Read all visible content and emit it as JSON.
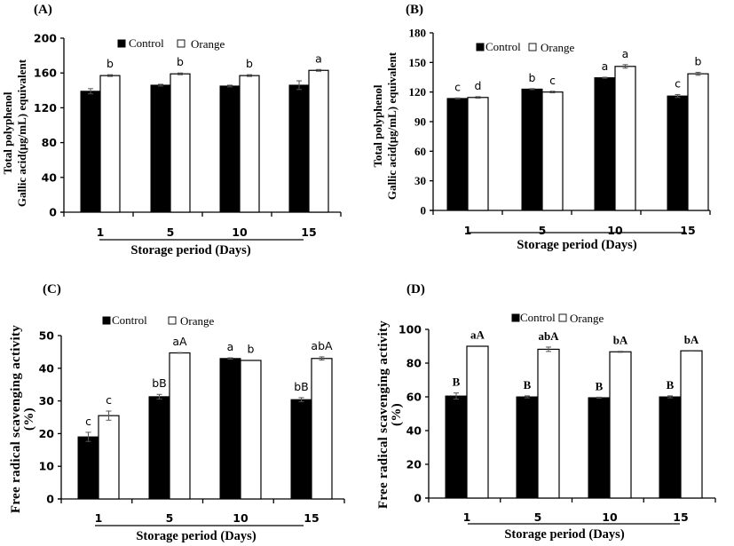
{
  "figure": {
    "legend": {
      "control": "Control",
      "orange": "Orange"
    },
    "colors": {
      "control": "#000000",
      "orange": "#ffffff",
      "axis": "#000000"
    }
  },
  "chart_data": [
    {
      "panel": "(A)",
      "type": "bar",
      "title": "",
      "xlabel": "Storage period (Days)",
      "ylabel": [
        "Total  polyphenol",
        "Gallic  acid(μg/mL)  equivalent"
      ],
      "categories": [
        "1",
        "5",
        "10",
        "15"
      ],
      "ylim": [
        0,
        200
      ],
      "yticks": [
        "0",
        "40",
        "80",
        "120",
        "160",
        "200"
      ],
      "ytick_values": [
        0,
        40,
        80,
        120,
        160,
        200
      ],
      "legend_position": "top-center",
      "grid": false,
      "series": [
        {
          "name": "Control",
          "values": [
            139,
            146,
            145,
            146
          ],
          "errors": [
            3,
            1,
            1,
            5
          ],
          "labels": [
            "",
            "",
            "",
            ""
          ]
        },
        {
          "name": "Orange",
          "values": [
            157,
            159,
            157,
            163
          ],
          "errors": [
            1,
            1,
            1,
            1
          ],
          "labels": [
            "b",
            "b",
            "b",
            "a"
          ]
        }
      ]
    },
    {
      "panel": "(B)",
      "type": "bar",
      "title": "",
      "xlabel": "Storage period (Days)",
      "ylabel": [
        "Total  polyphenol",
        "Gallic  acid(μg/mL)  equivalent"
      ],
      "categories": [
        "1",
        "5",
        "10",
        "15"
      ],
      "ylim": [
        0,
        180
      ],
      "yticks": [
        "0",
        "30",
        "60",
        "90",
        "120",
        "150",
        "180"
      ],
      "ytick_values": [
        0,
        30,
        60,
        90,
        120,
        150,
        180
      ],
      "legend_position": "top-center",
      "grid": false,
      "series": [
        {
          "name": "Control",
          "values": [
            113.5,
            123,
            134.5,
            116
          ],
          "errors": [
            0.5,
            0.5,
            0.5,
            1.5
          ],
          "labels": [
            "c",
            "b",
            "a",
            "c"
          ]
        },
        {
          "name": "Orange",
          "values": [
            114.5,
            120,
            146,
            138.5
          ],
          "errors": [
            0.8,
            0.8,
            1.8,
            1.5
          ],
          "labels": [
            "d",
            "c",
            "a",
            "b"
          ]
        }
      ]
    },
    {
      "panel": "(C)",
      "type": "bar",
      "title": "",
      "xlabel": "Storage period (Days)",
      "ylabel": [
        "Free radical scavenging activity",
        "(%)"
      ],
      "categories": [
        "1",
        "5",
        "10",
        "15"
      ],
      "ylim": [
        0,
        50
      ],
      "yticks": [
        "0",
        "10",
        "20",
        "30",
        "40",
        "50"
      ],
      "ytick_values": [
        0,
        10,
        20,
        30,
        40,
        50
      ],
      "legend_position": "top-center",
      "grid": false,
      "series": [
        {
          "name": "Control",
          "values": [
            19,
            31.3,
            43,
            30.4
          ],
          "errors": [
            1.4,
            0.7,
            0.2,
            0.6
          ],
          "labels": [
            "c",
            "bB",
            "a",
            "bB"
          ]
        },
        {
          "name": "Orange",
          "values": [
            25.5,
            44.7,
            42.4,
            43
          ],
          "errors": [
            1.4,
            0.1,
            0.1,
            0.5
          ],
          "labels": [
            "c",
            "aA",
            "b",
            "abA"
          ]
        }
      ]
    },
    {
      "panel": "(D)",
      "type": "bar",
      "title": "",
      "xlabel": "Storage period (Days)",
      "ylabel": [
        "Free radical scavenging activity",
        "(%)"
      ],
      "categories": [
        "1",
        "5",
        "10",
        "15"
      ],
      "ylim": [
        0,
        100
      ],
      "yticks": [
        "0",
        "20",
        "40",
        "60",
        "80",
        "100"
      ],
      "ytick_values": [
        0,
        20,
        40,
        60,
        80,
        100
      ],
      "legend_position": "top-center",
      "grid": false,
      "series": [
        {
          "name": "Control",
          "values": [
            60.5,
            60,
            59.5,
            60
          ],
          "errors": [
            1.8,
            0.6,
            0.3,
            0.6
          ],
          "labels": [
            "B",
            "B",
            "B",
            "B"
          ]
        },
        {
          "name": "Orange",
          "values": [
            90,
            88.2,
            86.7,
            87.3
          ],
          "errors": [
            0.2,
            1.3,
            0.3,
            0.2
          ],
          "labels": [
            "aA",
            "abA",
            "bA",
            "bA"
          ]
        }
      ]
    }
  ]
}
